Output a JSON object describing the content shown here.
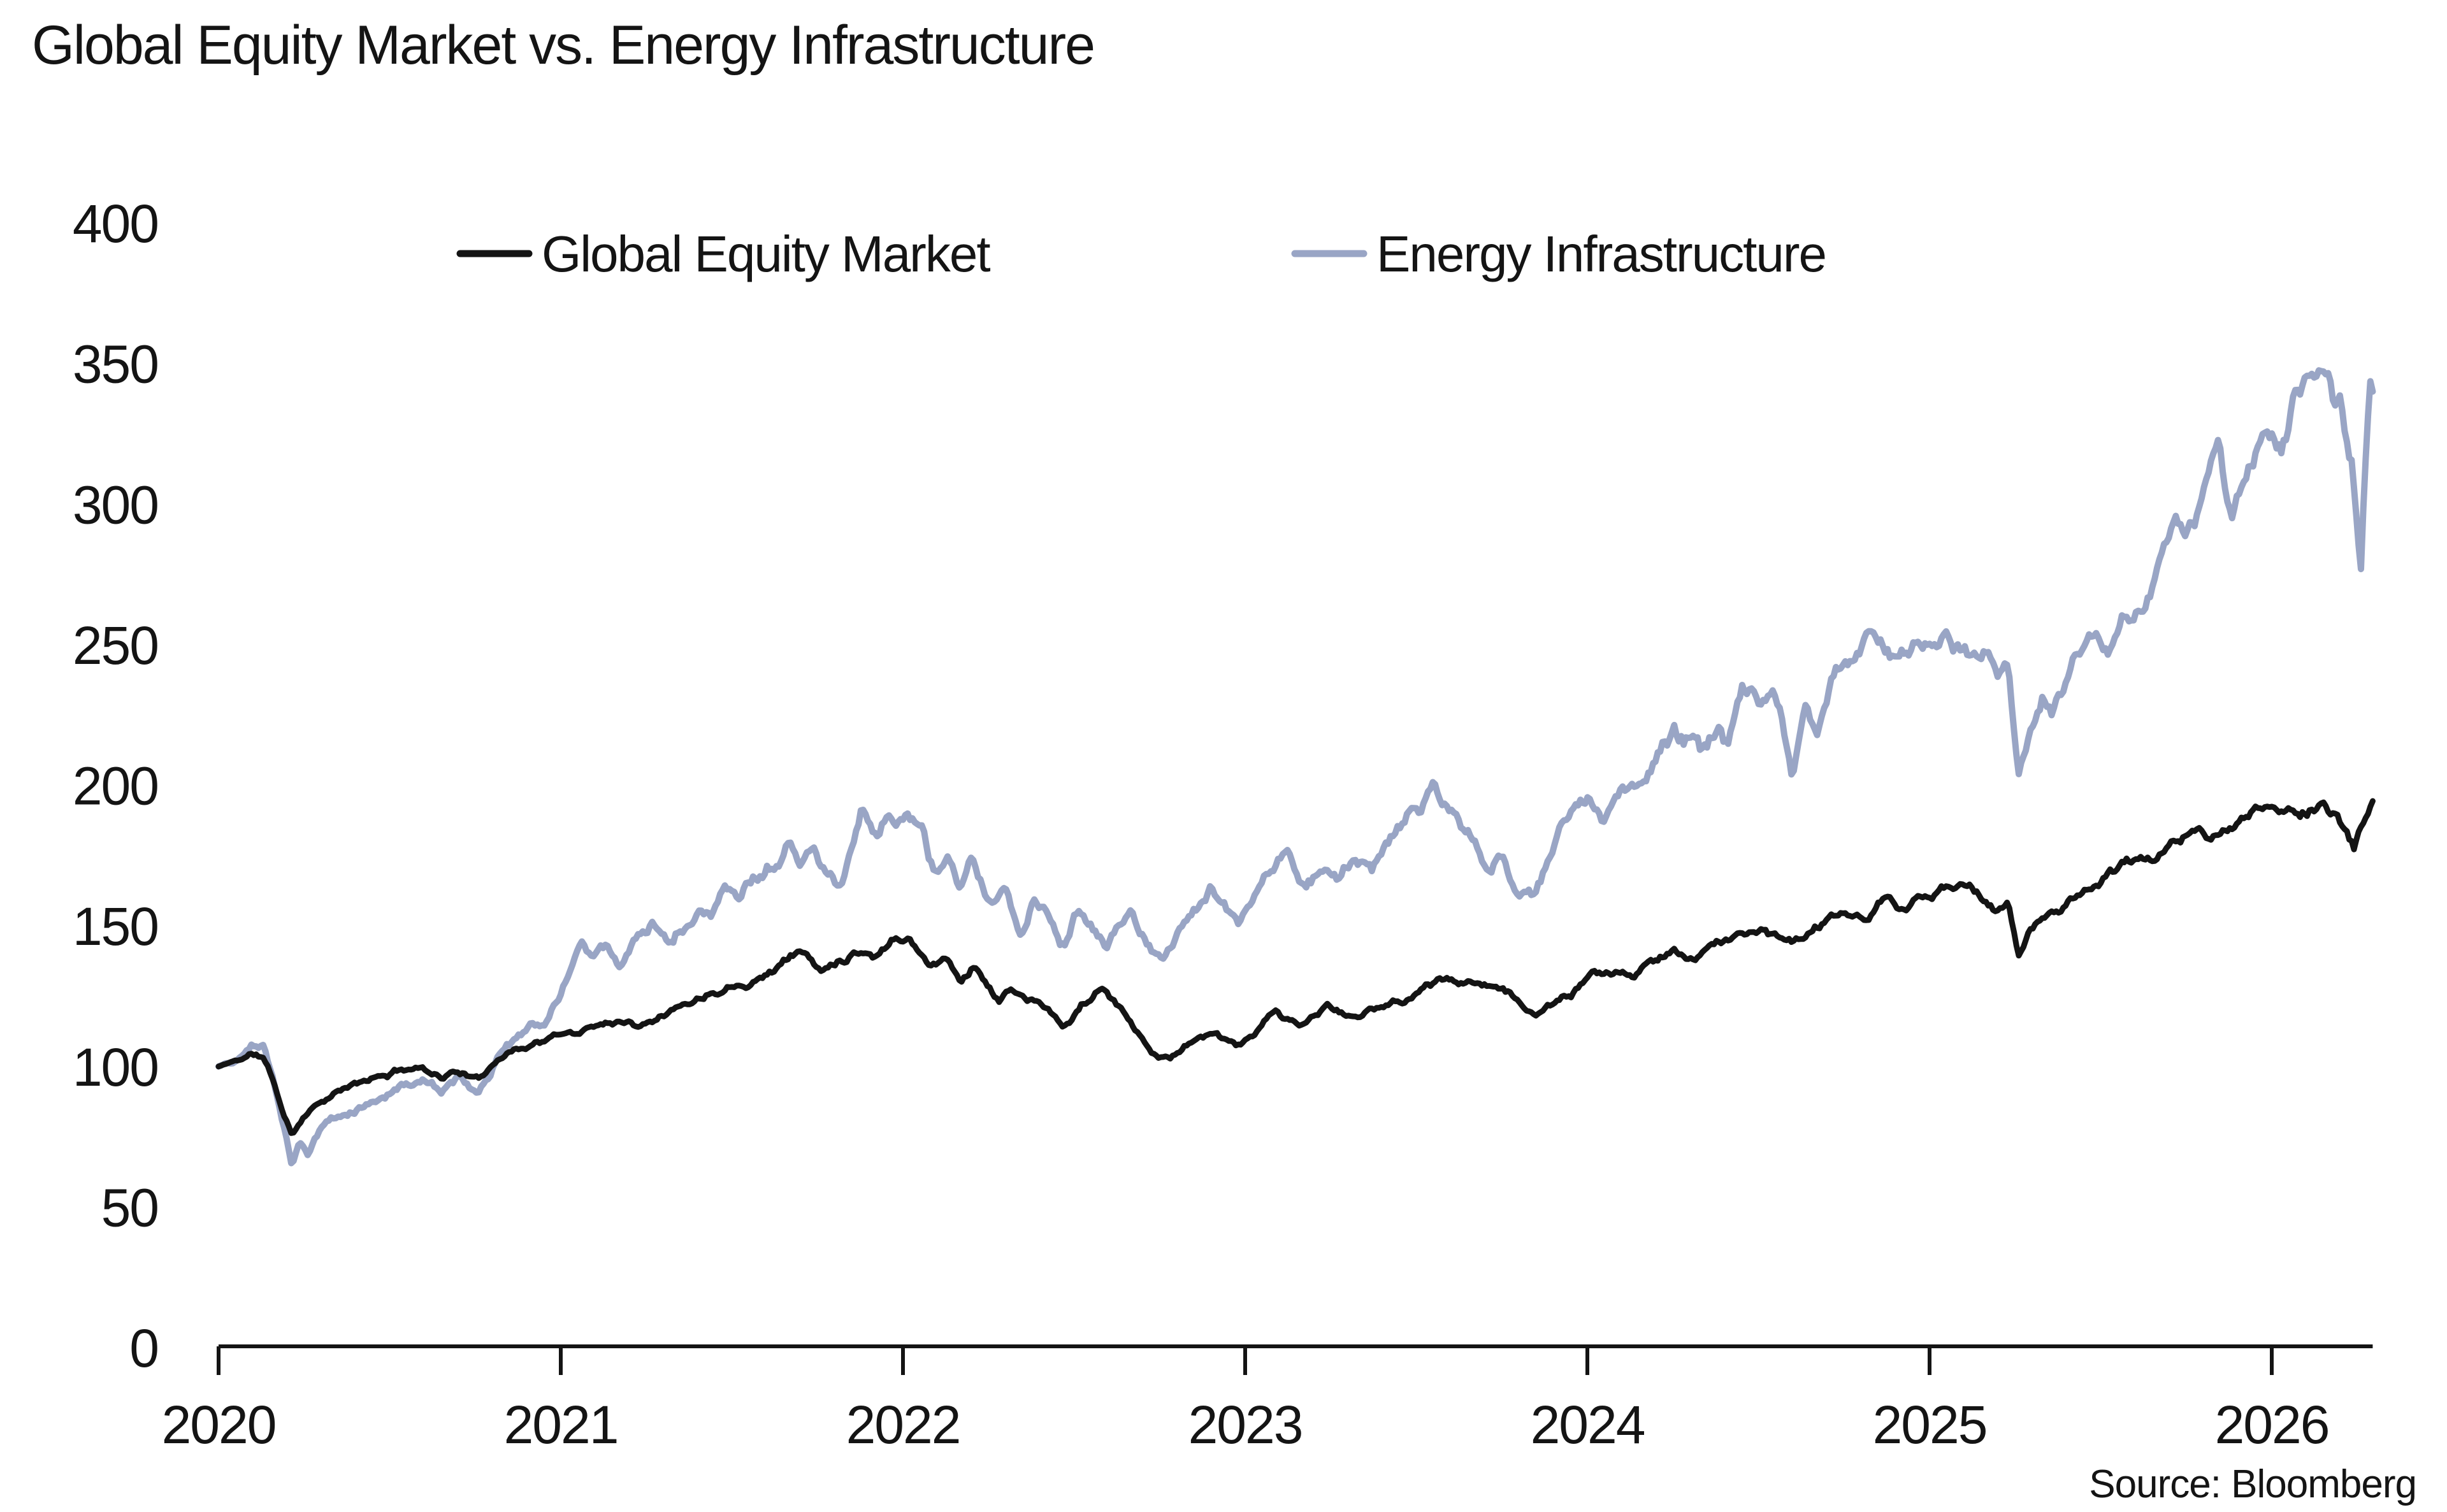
{
  "chart_data": {
    "type": "line",
    "title": "Global Equity Market vs. Energy Infrastructure",
    "source": "Source: Bloomberg",
    "background": "#ffffff",
    "text_color": "#141414",
    "axis_color": "#141414",
    "grid": "off",
    "legend_position": "top-center",
    "x_axis": {
      "min": 2020.0,
      "max": 2026.295,
      "ticks": [
        2020,
        2021,
        2022,
        2023,
        2024,
        2025,
        2026
      ]
    },
    "y_axis": {
      "min": 0,
      "max": 400,
      "ticks": [
        0,
        50,
        100,
        150,
        200,
        250,
        300,
        350,
        400
      ]
    },
    "legend": [
      {
        "label": "Global Equity Market",
        "color": "#141414"
      },
      {
        "label": "Energy Infrastructure",
        "color": "#99a5c5"
      }
    ],
    "series": [
      {
        "name": "Global Equity Market",
        "color": "#141414",
        "stroke_width": 9,
        "keypoints": [
          [
            2020.0,
            100
          ],
          [
            2020.05,
            102
          ],
          [
            2020.1,
            104.5
          ],
          [
            2020.13,
            103
          ],
          [
            2020.16,
            95
          ],
          [
            2020.19,
            83
          ],
          [
            2020.215,
            76
          ],
          [
            2020.25,
            83
          ],
          [
            2020.3,
            88
          ],
          [
            2020.35,
            91
          ],
          [
            2020.4,
            93
          ],
          [
            2020.45,
            95.5
          ],
          [
            2020.5,
            97
          ],
          [
            2020.55,
            99.5
          ],
          [
            2020.6,
            100
          ],
          [
            2020.65,
            97
          ],
          [
            2020.7,
            99
          ],
          [
            2020.76,
            95
          ],
          [
            2020.82,
            104
          ],
          [
            2020.9,
            108
          ],
          [
            2020.96,
            110
          ],
          [
            2021.0,
            111
          ],
          [
            2021.08,
            113.5
          ],
          [
            2021.17,
            117
          ],
          [
            2021.22,
            115
          ],
          [
            2021.3,
            121
          ],
          [
            2021.35,
            123
          ],
          [
            2021.42,
            126
          ],
          [
            2021.5,
            130
          ],
          [
            2021.6,
            134
          ],
          [
            2021.66,
            139
          ],
          [
            2021.7,
            142
          ],
          [
            2021.76,
            134
          ],
          [
            2021.82,
            140
          ],
          [
            2021.88,
            144
          ],
          [
            2021.92,
            141
          ],
          [
            2021.97,
            147
          ],
          [
            2022.02,
            148
          ],
          [
            2022.08,
            137
          ],
          [
            2022.12,
            140
          ],
          [
            2022.17,
            132
          ],
          [
            2022.21,
            138
          ],
          [
            2022.28,
            124
          ],
          [
            2022.32,
            128
          ],
          [
            2022.38,
            123
          ],
          [
            2022.43,
            119
          ],
          [
            2022.47,
            113
          ],
          [
            2022.52,
            121
          ],
          [
            2022.58,
            127
          ],
          [
            2022.62,
            122
          ],
          [
            2022.68,
            114
          ],
          [
            2022.73,
            107
          ],
          [
            2022.78,
            103.5
          ],
          [
            2022.84,
            111
          ],
          [
            2022.9,
            113
          ],
          [
            2022.97,
            108
          ],
          [
            2023.03,
            112
          ],
          [
            2023.09,
            120
          ],
          [
            2023.16,
            113
          ],
          [
            2023.24,
            121
          ],
          [
            2023.3,
            117
          ],
          [
            2023.37,
            119.5
          ],
          [
            2023.46,
            124
          ],
          [
            2023.52,
            129
          ],
          [
            2023.57,
            132
          ],
          [
            2023.64,
            127.5
          ],
          [
            2023.71,
            130
          ],
          [
            2023.8,
            123
          ],
          [
            2023.85,
            117.5
          ],
          [
            2023.92,
            124
          ],
          [
            2024.0,
            131
          ],
          [
            2024.08,
            134.5
          ],
          [
            2024.13,
            133
          ],
          [
            2024.2,
            138
          ],
          [
            2024.25,
            141
          ],
          [
            2024.3,
            139
          ],
          [
            2024.37,
            144
          ],
          [
            2024.44,
            147.5
          ],
          [
            2024.5,
            150
          ],
          [
            2024.55,
            148
          ],
          [
            2024.6,
            145
          ],
          [
            2024.66,
            151
          ],
          [
            2024.72,
            154
          ],
          [
            2024.78,
            156.5
          ],
          [
            2024.82,
            153
          ],
          [
            2024.87,
            159
          ],
          [
            2024.92,
            156
          ],
          [
            2025.0,
            160
          ],
          [
            2025.06,
            162.5
          ],
          [
            2025.12,
            164
          ],
          [
            2025.16,
            158
          ],
          [
            2025.2,
            153
          ],
          [
            2025.23,
            157
          ],
          [
            2025.26,
            136
          ],
          [
            2025.29,
            146
          ],
          [
            2025.33,
            152
          ],
          [
            2025.38,
            156
          ],
          [
            2025.43,
            161
          ],
          [
            2025.47,
            164
          ],
          [
            2025.52,
            167
          ],
          [
            2025.56,
            170
          ],
          [
            2025.61,
            172
          ],
          [
            2025.65,
            174
          ],
          [
            2025.7,
            177
          ],
          [
            2025.75,
            180
          ],
          [
            2025.8,
            182
          ],
          [
            2025.84,
            181
          ],
          [
            2025.88,
            184
          ],
          [
            2025.92,
            187
          ],
          [
            2025.96,
            189
          ],
          [
            2026.0,
            190.5
          ],
          [
            2026.05,
            192
          ],
          [
            2026.1,
            191
          ],
          [
            2026.14,
            194
          ],
          [
            2026.18,
            190
          ],
          [
            2026.21,
            185
          ],
          [
            2026.24,
            178
          ],
          [
            2026.27,
            190
          ],
          [
            2026.295,
            196
          ]
        ]
      },
      {
        "name": "Energy Infrastructure",
        "color": "#99a5c5",
        "stroke_width": 10,
        "keypoints": [
          [
            2020.0,
            100
          ],
          [
            2020.04,
            102
          ],
          [
            2020.08,
            105
          ],
          [
            2020.13,
            110
          ],
          [
            2020.16,
            98
          ],
          [
            2020.19,
            80
          ],
          [
            2020.215,
            66
          ],
          [
            2020.235,
            75
          ],
          [
            2020.26,
            70
          ],
          [
            2020.3,
            80
          ],
          [
            2020.35,
            85
          ],
          [
            2020.4,
            87
          ],
          [
            2020.45,
            89
          ],
          [
            2020.5,
            91
          ],
          [
            2020.55,
            95
          ],
          [
            2020.6,
            97
          ],
          [
            2020.65,
            92
          ],
          [
            2020.7,
            96.5
          ],
          [
            2020.76,
            92
          ],
          [
            2020.82,
            105
          ],
          [
            2020.9,
            113
          ],
          [
            2020.96,
            119
          ],
          [
            2021.0,
            126
          ],
          [
            2021.06,
            149
          ],
          [
            2021.1,
            141
          ],
          [
            2021.14,
            146
          ],
          [
            2021.17,
            139
          ],
          [
            2021.22,
            149
          ],
          [
            2021.27,
            153
          ],
          [
            2021.31,
            147
          ],
          [
            2021.36,
            154
          ],
          [
            2021.4,
            158
          ],
          [
            2021.44,
            155
          ],
          [
            2021.48,
            165
          ],
          [
            2021.52,
            161
          ],
          [
            2021.56,
            170
          ],
          [
            2021.6,
            173
          ],
          [
            2021.64,
            176
          ],
          [
            2021.66,
            180
          ],
          [
            2021.7,
            176
          ],
          [
            2021.74,
            181
          ],
          [
            2021.78,
            171
          ],
          [
            2021.82,
            167
          ],
          [
            2021.88,
            196
          ],
          [
            2021.91,
            188
          ],
          [
            2021.95,
            194
          ],
          [
            2021.98,
            187
          ],
          [
            2022.01,
            193
          ],
          [
            2022.06,
            184
          ],
          [
            2022.09,
            171
          ],
          [
            2022.13,
            178
          ],
          [
            2022.16,
            165
          ],
          [
            2022.2,
            176
          ],
          [
            2022.26,
            159
          ],
          [
            2022.3,
            165
          ],
          [
            2022.34,
            150
          ],
          [
            2022.38,
            161
          ],
          [
            2022.43,
            158
          ],
          [
            2022.47,
            148
          ],
          [
            2022.51,
            160
          ],
          [
            2022.55,
            152
          ],
          [
            2022.59,
            144
          ],
          [
            2022.63,
            152
          ],
          [
            2022.67,
            156
          ],
          [
            2022.71,
            146
          ],
          [
            2022.76,
            140
          ],
          [
            2022.8,
            148
          ],
          [
            2022.85,
            157
          ],
          [
            2022.9,
            162
          ],
          [
            2022.94,
            155
          ],
          [
            2022.98,
            150
          ],
          [
            2023.03,
            163
          ],
          [
            2023.11,
            179
          ],
          [
            2023.17,
            170
          ],
          [
            2023.22,
            174
          ],
          [
            2023.27,
            170
          ],
          [
            2023.32,
            176
          ],
          [
            2023.37,
            172
          ],
          [
            2023.42,
            183
          ],
          [
            2023.48,
            195
          ],
          [
            2023.55,
            203
          ],
          [
            2023.6,
            198
          ],
          [
            2023.63,
            189
          ],
          [
            2023.67,
            184
          ],
          [
            2023.71,
            172
          ],
          [
            2023.75,
            176
          ],
          [
            2023.8,
            164
          ],
          [
            2023.84,
            161
          ],
          [
            2023.88,
            172
          ],
          [
            2023.92,
            185
          ],
          [
            2023.96,
            192
          ],
          [
            2024.0,
            196
          ],
          [
            2024.04,
            188
          ],
          [
            2024.08,
            195
          ],
          [
            2024.13,
            201
          ],
          [
            2024.17,
            204
          ],
          [
            2024.2,
            210
          ],
          [
            2024.25,
            218
          ],
          [
            2024.28,
            214
          ],
          [
            2024.31,
            222
          ],
          [
            2024.34,
            213
          ],
          [
            2024.38,
            218
          ],
          [
            2024.41,
            211
          ],
          [
            2024.45,
            229
          ],
          [
            2024.48,
            233
          ],
          [
            2024.51,
            226
          ],
          [
            2024.54,
            230
          ],
          [
            2024.57,
            219
          ],
          [
            2024.6,
            201
          ],
          [
            2024.64,
            222
          ],
          [
            2024.67,
            215
          ],
          [
            2024.7,
            228
          ],
          [
            2024.73,
            238
          ],
          [
            2024.76,
            233
          ],
          [
            2024.79,
            240
          ],
          [
            2024.83,
            244
          ],
          [
            2024.87,
            240
          ],
          [
            2024.9,
            236
          ],
          [
            2024.94,
            241
          ],
          [
            2025.0,
            243
          ],
          [
            2025.04,
            246
          ],
          [
            2025.08,
            244
          ],
          [
            2025.12,
            238
          ],
          [
            2025.16,
            242
          ],
          [
            2025.2,
            230
          ],
          [
            2025.23,
            236
          ],
          [
            2025.26,
            200
          ],
          [
            2025.3,
            216
          ],
          [
            2025.33,
            223
          ],
          [
            2025.36,
            218
          ],
          [
            2025.41,
            233
          ],
          [
            2025.45,
            240
          ],
          [
            2025.49,
            246
          ],
          [
            2025.52,
            242
          ],
          [
            2025.56,
            252
          ],
          [
            2025.6,
            258
          ],
          [
            2025.63,
            254
          ],
          [
            2025.66,
            264
          ],
          [
            2025.69,
            276
          ],
          [
            2025.72,
            288
          ],
          [
            2025.75,
            283
          ],
          [
            2025.78,
            292
          ],
          [
            2025.81,
            300
          ],
          [
            2025.84,
            311
          ],
          [
            2025.86,
            302
          ],
          [
            2025.88,
            295
          ],
          [
            2025.91,
            305
          ],
          [
            2025.94,
            315
          ],
          [
            2025.97,
            326
          ],
          [
            2026.0,
            333
          ],
          [
            2026.03,
            328
          ],
          [
            2026.06,
            340
          ],
          [
            2026.1,
            346
          ],
          [
            2026.13,
            342
          ],
          [
            2026.16,
            352
          ],
          [
            2026.18,
            344
          ],
          [
            2026.2,
            350
          ],
          [
            2026.22,
            337
          ],
          [
            2026.235,
            327
          ],
          [
            2026.26,
            281
          ],
          [
            2026.28,
            340
          ],
          [
            2026.29,
            356
          ],
          [
            2026.295,
            352
          ]
        ]
      }
    ],
    "noise": {
      "samples": 920,
      "fast_step": 2.2,
      "fast_damp": 0.86,
      "slow_step": 1.1,
      "slow_damp": 0.985,
      "ref": 150,
      "series_noise": [
        {
          "seed": 11,
          "mult": 0.85
        },
        {
          "seed": 47,
          "mult": 1.25
        }
      ]
    }
  }
}
